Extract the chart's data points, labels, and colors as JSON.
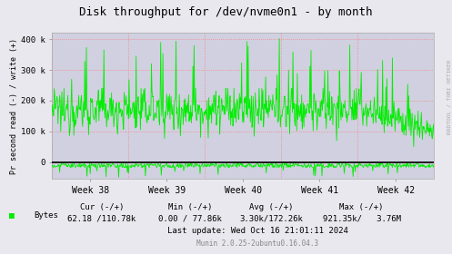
{
  "title": "Disk throughput for /dev/nvme0n1 - by month",
  "ylabel": "Pr second read (-) / write (+)",
  "right_label": "RRDTOOL / TOBI OETIKER",
  "outer_bg_color": "#e8e8ee",
  "plot_bg_color": "#d0d0e0",
  "grid_color": "#ff8080",
  "line_color": "#00ee00",
  "zero_line_color": "#000000",
  "x_tick_labels": [
    "Week 38",
    "Week 39",
    "Week 40",
    "Week 41",
    "Week 42"
  ],
  "ylim": [
    -55000,
    420000
  ],
  "yticks": [
    0,
    100000,
    200000,
    300000,
    400000
  ],
  "ytick_labels": [
    "0",
    "100 k",
    "200 k",
    "300 k",
    "400 k"
  ],
  "legend_label": "Bytes",
  "cur_label": "Cur (-/+)",
  "min_label": "Min (-/+)",
  "avg_label": "Avg (-/+)",
  "max_label": "Max (-/+)",
  "cur_val": "62.18 /110.78k",
  "min_val": "0.00 / 77.86k",
  "avg_val": "3.30k/172.26k",
  "max_val": "921.35k/   3.76M",
  "last_update": "Last update: Wed Oct 16 21:01:11 2024",
  "footer_munin": "Munin 2.0.25-2ubuntu0.16.04.3",
  "num_points": 700,
  "seed": 12345
}
